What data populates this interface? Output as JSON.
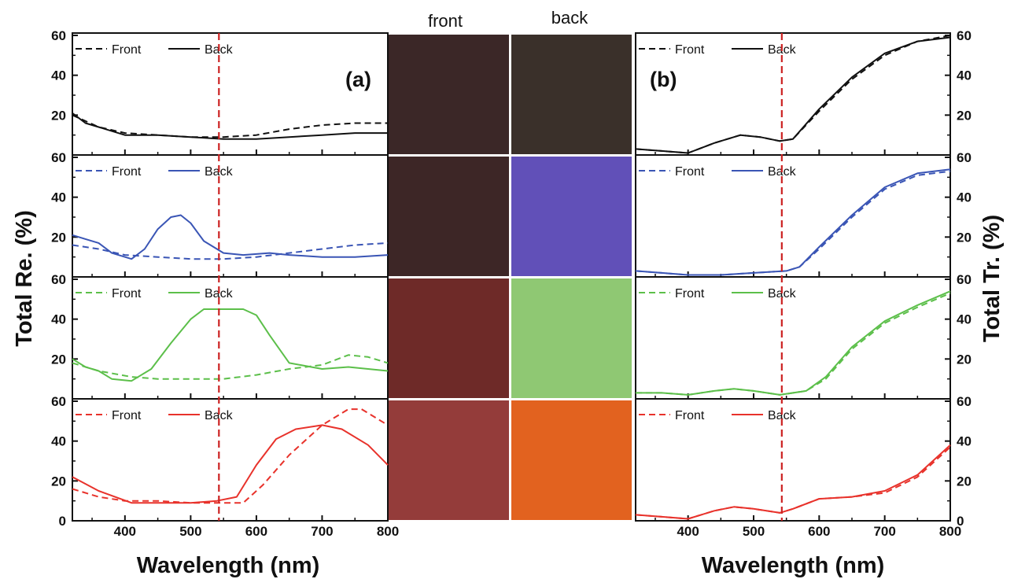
{
  "figure": {
    "left_ylabel": "Total Re. (%)",
    "right_ylabel": "Total Tr. (%)",
    "xlabel": "Wavelength (nm)",
    "photo_headers": [
      "front",
      "back"
    ]
  },
  "colors": {
    "black": "#111111",
    "blue": "#3a55b5",
    "green": "#5cbf4a",
    "red": "#e8322b",
    "marker": "#cc2222"
  },
  "photos": [
    {
      "front": "#3b2727",
      "back": "#3a302a"
    },
    {
      "front": "#3d2626",
      "back": "#6150b8"
    },
    {
      "front": "#6e2a28",
      "back": "#8fc873"
    },
    {
      "front": "#943c3a",
      "back": "#e2621f"
    }
  ],
  "chart_data": [
    {
      "panel": "(a)",
      "type": "line",
      "xlabel": "Wavelength (nm)",
      "ylabel": "Total Re. (%)",
      "xlim": [
        320,
        800
      ],
      "ylim": [
        0,
        60
      ],
      "xticks": [
        "400",
        "500",
        "600",
        "700",
        "800"
      ],
      "yticks": [
        "0",
        "20",
        "40",
        "60"
      ],
      "marker_wavelength": 543,
      "rows": [
        {
          "color": "black",
          "legend": [
            "Front",
            "Back"
          ],
          "series": [
            {
              "name": "Front",
              "style": "dashed",
              "x": [
                320,
                360,
                400,
                450,
                500,
                550,
                600,
                650,
                700,
                750,
                800
              ],
              "y": [
                20,
                14,
                11,
                10,
                9,
                9,
                10,
                13,
                15,
                16,
                16
              ]
            },
            {
              "name": "Back",
              "style": "solid",
              "x": [
                320,
                340,
                360,
                400,
                450,
                500,
                550,
                600,
                650,
                700,
                750,
                800
              ],
              "y": [
                21,
                16,
                14,
                10,
                10,
                9,
                8,
                8,
                9,
                10,
                11,
                11
              ]
            }
          ]
        },
        {
          "color": "blue",
          "legend": [
            "Front",
            "Back"
          ],
          "series": [
            {
              "name": "Front",
              "style": "dashed",
              "x": [
                320,
                360,
                400,
                450,
                500,
                550,
                600,
                650,
                700,
                750,
                800
              ],
              "y": [
                16,
                14,
                11,
                10,
                9,
                9,
                10,
                12,
                14,
                16,
                17
              ]
            },
            {
              "name": "Back",
              "style": "solid",
              "x": [
                320,
                340,
                360,
                380,
                410,
                430,
                450,
                470,
                485,
                500,
                520,
                550,
                580,
                620,
                650,
                700,
                750,
                800
              ],
              "y": [
                21,
                19,
                17,
                12,
                9,
                14,
                24,
                30,
                31,
                27,
                18,
                12,
                11,
                12,
                11,
                10,
                10,
                11
              ]
            }
          ]
        },
        {
          "color": "green",
          "legend": [
            "Front",
            "Back"
          ],
          "series": [
            {
              "name": "Front",
              "style": "dashed",
              "x": [
                320,
                360,
                410,
                450,
                500,
                550,
                600,
                650,
                700,
                740,
                770,
                800
              ],
              "y": [
                18,
                14,
                11,
                10,
                10,
                10,
                12,
                15,
                17,
                22,
                21,
                18
              ]
            },
            {
              "name": "Back",
              "style": "solid",
              "x": [
                320,
                340,
                360,
                380,
                410,
                440,
                470,
                500,
                520,
                540,
                580,
                600,
                620,
                650,
                700,
                740,
                770,
                800
              ],
              "y": [
                20,
                16,
                14,
                10,
                9,
                15,
                28,
                40,
                45,
                45,
                45,
                42,
                32,
                18,
                15,
                16,
                15,
                14
              ]
            }
          ]
        },
        {
          "color": "red",
          "legend": [
            "Front",
            "Back"
          ],
          "series": [
            {
              "name": "Front",
              "style": "dashed",
              "x": [
                320,
                360,
                400,
                450,
                500,
                550,
                580,
                610,
                650,
                700,
                740,
                760,
                800
              ],
              "y": [
                16,
                12,
                10,
                10,
                9,
                9,
                9,
                18,
                33,
                48,
                56,
                56,
                48
              ]
            },
            {
              "name": "Back",
              "style": "solid",
              "x": [
                320,
                360,
                410,
                450,
                500,
                540,
                570,
                600,
                630,
                660,
                700,
                730,
                770,
                800
              ],
              "y": [
                22,
                15,
                9,
                9,
                9,
                10,
                12,
                28,
                41,
                46,
                48,
                46,
                38,
                28
              ]
            }
          ]
        }
      ]
    },
    {
      "panel": "(b)",
      "type": "line",
      "xlabel": "Wavelength (nm)",
      "ylabel": "Total Tr. (%)",
      "xlim": [
        320,
        800
      ],
      "ylim": [
        0,
        60
      ],
      "xticks": [
        "400",
        "500",
        "600",
        "700",
        "800"
      ],
      "yticks": [
        "0",
        "20",
        "40",
        "60"
      ],
      "marker_wavelength": 543,
      "rows": [
        {
          "color": "black",
          "legend": [
            "Front",
            "Back"
          ],
          "series": [
            {
              "name": "Front",
              "style": "dashed",
              "x": [
                320,
                360,
                400,
                440,
                480,
                510,
                540,
                560,
                600,
                650,
                700,
                750,
                800
              ],
              "y": [
                3,
                2,
                1,
                6,
                10,
                9,
                7,
                8,
                22,
                38,
                50,
                57,
                60
              ]
            },
            {
              "name": "Back",
              "style": "solid",
              "x": [
                320,
                360,
                400,
                440,
                480,
                510,
                540,
                560,
                600,
                650,
                700,
                750,
                800
              ],
              "y": [
                3,
                2,
                1,
                6,
                10,
                9,
                7,
                8,
                23,
                39,
                51,
                57,
                59
              ]
            }
          ]
        },
        {
          "color": "blue",
          "legend": [
            "Front",
            "Back"
          ],
          "series": [
            {
              "name": "Front",
              "style": "dashed",
              "x": [
                320,
                360,
                400,
                450,
                500,
                550,
                570,
                600,
                650,
                700,
                750,
                800
              ],
              "y": [
                3,
                2,
                1,
                1,
                2,
                3,
                5,
                14,
                30,
                44,
                51,
                53
              ]
            },
            {
              "name": "Back",
              "style": "solid",
              "x": [
                320,
                360,
                400,
                450,
                500,
                550,
                570,
                600,
                650,
                700,
                750,
                800
              ],
              "y": [
                3,
                2,
                1,
                1,
                2,
                3,
                5,
                15,
                31,
                45,
                52,
                54
              ]
            }
          ]
        },
        {
          "color": "green",
          "legend": [
            "Front",
            "Back"
          ],
          "series": [
            {
              "name": "Front",
              "style": "dashed",
              "x": [
                320,
                360,
                400,
                440,
                470,
                500,
                540,
                580,
                610,
                650,
                700,
                750,
                800
              ],
              "y": [
                3,
                3,
                2,
                4,
                5,
                4,
                2,
                4,
                10,
                25,
                38,
                46,
                53
              ]
            },
            {
              "name": "Back",
              "style": "solid",
              "x": [
                320,
                360,
                400,
                440,
                470,
                500,
                540,
                580,
                610,
                650,
                700,
                750,
                800
              ],
              "y": [
                3,
                3,
                2,
                4,
                5,
                4,
                2,
                4,
                11,
                26,
                39,
                47,
                54
              ]
            }
          ]
        },
        {
          "color": "red",
          "legend": [
            "Front",
            "Back"
          ],
          "series": [
            {
              "name": "Front",
              "style": "dashed",
              "x": [
                320,
                360,
                400,
                440,
                470,
                500,
                540,
                560,
                600,
                650,
                700,
                750,
                800
              ],
              "y": [
                3,
                2,
                1,
                5,
                7,
                6,
                4,
                6,
                11,
                12,
                14,
                22,
                37
              ]
            },
            {
              "name": "Back",
              "style": "solid",
              "x": [
                320,
                360,
                400,
                440,
                470,
                500,
                540,
                560,
                600,
                650,
                700,
                750,
                800
              ],
              "y": [
                3,
                2,
                1,
                5,
                7,
                6,
                4,
                6,
                11,
                12,
                15,
                23,
                38
              ]
            }
          ]
        }
      ]
    }
  ]
}
